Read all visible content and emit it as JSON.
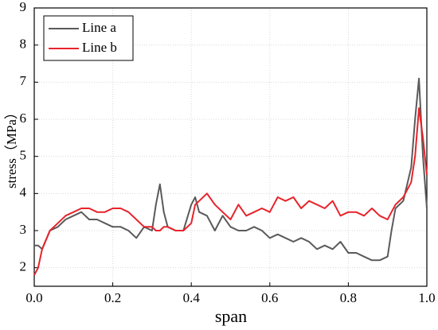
{
  "chart_data": {
    "type": "line",
    "xlabel": "span",
    "ylabel": "stress（MPa）",
    "x": [
      0,
      0.01,
      0.02,
      0.04,
      0.06,
      0.08,
      0.1,
      0.12,
      0.14,
      0.16,
      0.18,
      0.2,
      0.22,
      0.24,
      0.26,
      0.28,
      0.3,
      0.31,
      0.32,
      0.33,
      0.34,
      0.36,
      0.38,
      0.4,
      0.41,
      0.42,
      0.44,
      0.46,
      0.48,
      0.5,
      0.52,
      0.54,
      0.56,
      0.58,
      0.6,
      0.62,
      0.64,
      0.66,
      0.68,
      0.7,
      0.72,
      0.74,
      0.76,
      0.78,
      0.8,
      0.82,
      0.84,
      0.86,
      0.88,
      0.9,
      0.91,
      0.92,
      0.94,
      0.96,
      0.97,
      0.98,
      0.99,
      1.0
    ],
    "series": [
      {
        "name": "Line a",
        "color": "#5a5a5a",
        "values": [
          2.6,
          2.6,
          2.5,
          3.0,
          3.1,
          3.3,
          3.4,
          3.5,
          3.3,
          3.3,
          3.2,
          3.1,
          3.1,
          3.0,
          2.8,
          3.1,
          3.0,
          3.7,
          4.25,
          3.5,
          3.1,
          3.0,
          3.0,
          3.7,
          3.9,
          3.5,
          3.4,
          3.0,
          3.4,
          3.1,
          3.0,
          3.0,
          3.1,
          3.0,
          2.8,
          2.9,
          2.8,
          2.7,
          2.8,
          2.7,
          2.5,
          2.6,
          2.5,
          2.7,
          2.4,
          2.4,
          2.3,
          2.2,
          2.2,
          2.3,
          3.0,
          3.6,
          3.8,
          4.7,
          6.0,
          7.1,
          5.0,
          3.6
        ]
      },
      {
        "name": "Line b",
        "color": "#e8232b",
        "values": [
          1.8,
          2.0,
          2.5,
          3.0,
          3.2,
          3.4,
          3.5,
          3.6,
          3.6,
          3.5,
          3.5,
          3.6,
          3.6,
          3.5,
          3.3,
          3.1,
          3.1,
          3.0,
          3.0,
          3.1,
          3.1,
          3.0,
          3.0,
          3.2,
          3.7,
          3.8,
          4.0,
          3.7,
          3.5,
          3.3,
          3.7,
          3.4,
          3.5,
          3.6,
          3.5,
          3.9,
          3.8,
          3.9,
          3.6,
          3.8,
          3.7,
          3.6,
          3.8,
          3.4,
          3.5,
          3.5,
          3.4,
          3.6,
          3.4,
          3.3,
          3.5,
          3.7,
          3.9,
          4.3,
          5.0,
          6.3,
          5.5,
          4.5
        ]
      }
    ],
    "xlim": [
      0,
      1
    ],
    "xticks": [
      {
        "value": 0,
        "label": "0.0"
      },
      0.2,
      0.4,
      0.6,
      0.8,
      {
        "value": 1,
        "label": "1.0"
      }
    ],
    "ylim": [
      1.5,
      9
    ],
    "yticks": [
      2,
      3,
      4,
      5,
      6,
      7,
      8,
      9
    ],
    "grid": true,
    "legend": "upper left"
  }
}
